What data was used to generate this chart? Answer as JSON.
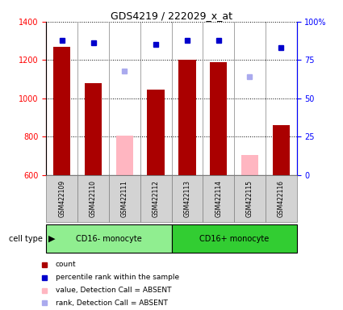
{
  "title": "GDS4219 / 222029_x_at",
  "samples": [
    "GSM422109",
    "GSM422110",
    "GSM422111",
    "GSM422112",
    "GSM422113",
    "GSM422114",
    "GSM422115",
    "GSM422116"
  ],
  "groups": [
    {
      "label": "CD16- monocyte",
      "indices": [
        0,
        1,
        2,
        3
      ],
      "color": "#90EE90"
    },
    {
      "label": "CD16+ monocyte",
      "indices": [
        4,
        5,
        6,
        7
      ],
      "color": "#32CD32"
    }
  ],
  "count_values": [
    1270,
    1080,
    null,
    1045,
    1200,
    1190,
    null,
    860
  ],
  "count_absent_values": [
    null,
    null,
    805,
    null,
    null,
    null,
    705,
    null
  ],
  "percentile_values": [
    88,
    86,
    null,
    85,
    88,
    88,
    null,
    83
  ],
  "percentile_absent_values": [
    null,
    null,
    68,
    null,
    null,
    null,
    64,
    null
  ],
  "ylim_left": [
    600,
    1400
  ],
  "ylim_right": [
    0,
    100
  ],
  "yticks_left": [
    600,
    800,
    1000,
    1200,
    1400
  ],
  "ytick_labels_right": [
    "0",
    "25",
    "50",
    "75",
    "100%"
  ],
  "yticks_right": [
    0,
    25,
    50,
    75,
    100
  ],
  "bar_color_present": "#AA0000",
  "bar_color_absent": "#FFB6C1",
  "dot_color_present": "#0000CC",
  "dot_color_absent": "#AAAAEE",
  "legend_items": [
    {
      "label": "count",
      "color": "#AA0000"
    },
    {
      "label": "percentile rank within the sample",
      "color": "#0000CC"
    },
    {
      "label": "value, Detection Call = ABSENT",
      "color": "#FFB6C1"
    },
    {
      "label": "rank, Detection Call = ABSENT",
      "color": "#AAAAEE"
    }
  ],
  "cell_type_label": "cell type",
  "bar_width": 0.55
}
